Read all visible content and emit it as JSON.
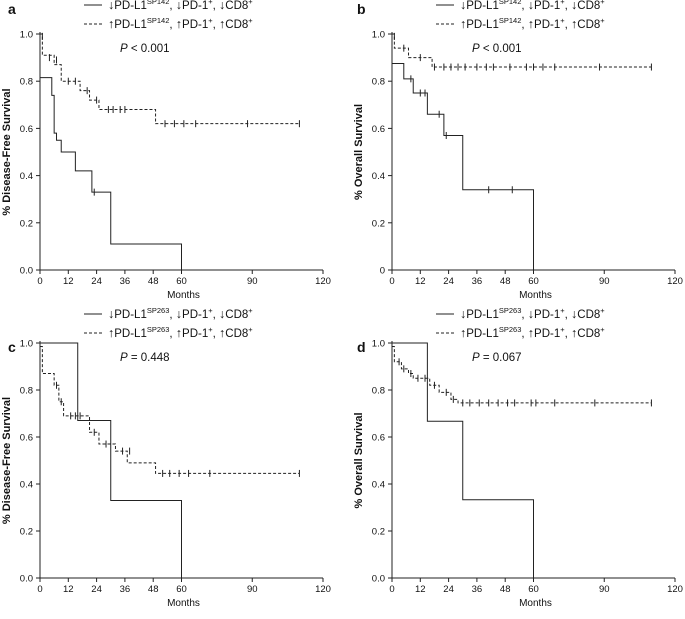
{
  "figure": {
    "arrows": {
      "down": "↓",
      "up": "↑"
    },
    "legend_parts": {
      "pdl1": "PD-L1",
      "pd1": "PD-1",
      "pd1_sup": "+",
      "cd8": "CD8",
      "cd8_sup": "+",
      "sep": ", "
    }
  },
  "chart_data": [
    {
      "panel": "a",
      "type": "line",
      "subtype": "kaplan-meier",
      "title": "",
      "xlabel": "Months",
      "ylabel": "% Disease-Free Survival",
      "xlim": [
        0,
        120
      ],
      "ylim": [
        0,
        1
      ],
      "xticks": [
        0,
        12,
        24,
        36,
        48,
        60,
        90,
        120
      ],
      "yticks": [
        0.0,
        0.2,
        0.4,
        0.6,
        0.8,
        1.0
      ],
      "ytick_labels": [
        "0.0",
        "0.2",
        "0.4",
        "0.6",
        "0.8",
        "1.0"
      ],
      "clone": "SP142",
      "p_label": "P",
      "p_text": " < 0.001",
      "series": [
        {
          "name": "↓PD-L1 SP142, ↓PD-1+, ↓CD8+",
          "style": "solid",
          "arrow": "down",
          "steps": [
            [
              0,
              0.815
            ],
            [
              5,
              0.74
            ],
            [
              6,
              0.58
            ],
            [
              7,
              0.55
            ],
            [
              9,
              0.5
            ],
            [
              15,
              0.42
            ],
            [
              22,
              0.33
            ],
            [
              30,
              0.11
            ],
            [
              60,
              0.0
            ]
          ],
          "censor": [
            [
              23,
              0.33
            ]
          ]
        },
        {
          "name": "↑PD-L1 SP142, ↑PD-1+, ↑CD8+",
          "style": "dashed",
          "arrow": "up",
          "steps": [
            [
              0,
              1.0
            ],
            [
              1,
              0.91
            ],
            [
              6,
              0.87
            ],
            [
              9,
              0.8
            ],
            [
              17,
              0.76
            ],
            [
              21,
              0.72
            ],
            [
              25,
              0.68
            ],
            [
              49,
              0.62
            ],
            [
              110,
              0.62
            ]
          ],
          "censor": [
            [
              1,
              0.99
            ],
            [
              4,
              0.9
            ],
            [
              7,
              0.89
            ],
            [
              12,
              0.8
            ],
            [
              15,
              0.8
            ],
            [
              20,
              0.76
            ],
            [
              24,
              0.72
            ],
            [
              29,
              0.68
            ],
            [
              31,
              0.68
            ],
            [
              34,
              0.68
            ],
            [
              36,
              0.68
            ],
            [
              53,
              0.62
            ],
            [
              57,
              0.62
            ],
            [
              61,
              0.62
            ],
            [
              66,
              0.62
            ],
            [
              88,
              0.62
            ],
            [
              110,
              0.62
            ]
          ]
        }
      ]
    },
    {
      "panel": "b",
      "type": "line",
      "subtype": "kaplan-meier",
      "title": "",
      "xlabel": "Months",
      "ylabel": "% Overall Survival",
      "xlim": [
        0,
        120
      ],
      "ylim": [
        0,
        1
      ],
      "xticks": [
        0,
        12,
        24,
        36,
        48,
        60,
        90,
        120
      ],
      "yticks": [
        0,
        0.2,
        0.4,
        0.6,
        0.8,
        1.0
      ],
      "ytick_labels": [
        "0",
        "0.2",
        "0.4",
        "0.6",
        "0.8",
        "1.0"
      ],
      "clone": "SP142",
      "p_label": "P",
      "p_text": " < 0.001",
      "series": [
        {
          "name": "↓PD-L1 SP142, ↓PD-1+, ↓CD8+",
          "style": "solid",
          "arrow": "down",
          "steps": [
            [
              0,
              0.875
            ],
            [
              5,
              0.81
            ],
            [
              9,
              0.75
            ],
            [
              15,
              0.66
            ],
            [
              22,
              0.57
            ],
            [
              30,
              0.34
            ],
            [
              60,
              0.0
            ]
          ],
          "censor": [
            [
              8,
              0.81
            ],
            [
              12,
              0.75
            ],
            [
              14,
              0.75
            ],
            [
              20,
              0.66
            ],
            [
              23,
              0.57
            ],
            [
              41,
              0.34
            ],
            [
              51,
              0.34
            ]
          ]
        },
        {
          "name": "↑PD-L1 SP142, ↑PD-1+, ↑CD8+",
          "style": "dashed",
          "arrow": "up",
          "steps": [
            [
              0,
              1.0
            ],
            [
              1,
              0.94
            ],
            [
              7,
              0.9
            ],
            [
              17,
              0.86
            ],
            [
              110,
              0.86
            ]
          ],
          "censor": [
            [
              1,
              0.99
            ],
            [
              5,
              0.94
            ],
            [
              12,
              0.9
            ],
            [
              18,
              0.86
            ],
            [
              22,
              0.86
            ],
            [
              25,
              0.86
            ],
            [
              28,
              0.86
            ],
            [
              31,
              0.86
            ],
            [
              36,
              0.86
            ],
            [
              40,
              0.86
            ],
            [
              43,
              0.86
            ],
            [
              50,
              0.86
            ],
            [
              57,
              0.86
            ],
            [
              60,
              0.86
            ],
            [
              64,
              0.86
            ],
            [
              69,
              0.86
            ],
            [
              88,
              0.86
            ],
            [
              110,
              0.86
            ]
          ]
        }
      ]
    },
    {
      "panel": "c",
      "type": "line",
      "subtype": "kaplan-meier",
      "title": "",
      "xlabel": "Months",
      "ylabel": "% Disease-Free Survival",
      "xlim": [
        0,
        120
      ],
      "ylim": [
        0,
        1
      ],
      "xticks": [
        0,
        12,
        24,
        36,
        48,
        60,
        90,
        120
      ],
      "yticks": [
        0.0,
        0.2,
        0.4,
        0.6,
        0.8,
        1.0
      ],
      "ytick_labels": [
        "0.0",
        "0.2",
        "0.4",
        "0.6",
        "0.8",
        "1.0"
      ],
      "clone": "SP263",
      "p_label": "P",
      "p_text": " = 0.448",
      "series": [
        {
          "name": "↓PD-L1 SP263, ↓PD-1+, ↓CD8+",
          "style": "solid",
          "arrow": "down",
          "steps": [
            [
              0,
              1.0
            ],
            [
              16,
              0.67
            ],
            [
              30,
              0.33
            ],
            [
              60,
              0.0
            ]
          ],
          "censor": []
        },
        {
          "name": "↑PD-L1 SP263, ↑PD-1+, ↑CD8+",
          "style": "dashed",
          "arrow": "up",
          "steps": [
            [
              0,
              0.985
            ],
            [
              1,
              0.87
            ],
            [
              6,
              0.82
            ],
            [
              8,
              0.75
            ],
            [
              10,
              0.69
            ],
            [
              21,
              0.62
            ],
            [
              25,
              0.57
            ],
            [
              32,
              0.54
            ],
            [
              37,
              0.49
            ],
            [
              49,
              0.445
            ],
            [
              110,
              0.445
            ]
          ],
          "censor": [
            [
              7,
              0.82
            ],
            [
              9,
              0.75
            ],
            [
              13,
              0.69
            ],
            [
              15,
              0.69
            ],
            [
              17,
              0.69
            ],
            [
              23,
              0.62
            ],
            [
              28,
              0.57
            ],
            [
              35,
              0.54
            ],
            [
              38,
              0.54
            ],
            [
              52,
              0.445
            ],
            [
              55,
              0.445
            ],
            [
              59,
              0.445
            ],
            [
              63,
              0.445
            ],
            [
              72,
              0.445
            ],
            [
              110,
              0.445
            ]
          ]
        }
      ]
    },
    {
      "panel": "d",
      "type": "line",
      "subtype": "kaplan-meier",
      "title": "",
      "xlabel": "Months",
      "ylabel": "% Overall Survival",
      "xlim": [
        0,
        120
      ],
      "ylim": [
        0,
        1
      ],
      "xticks": [
        0,
        12,
        24,
        36,
        48,
        60,
        90,
        120
      ],
      "yticks": [
        0.0,
        0.2,
        0.4,
        0.6,
        0.8,
        1.0
      ],
      "ytick_labels": [
        "0.0",
        "0.2",
        "0.4",
        "0.6",
        "0.8",
        "1.0"
      ],
      "clone": "SP263",
      "p_label": "P",
      "p_text": " = 0.067",
      "series": [
        {
          "name": "↓PD-L1 SP263, ↓PD-1+, ↓CD8+",
          "style": "solid",
          "arrow": "down",
          "steps": [
            [
              0,
              1.0
            ],
            [
              15,
              0.667
            ],
            [
              30,
              0.333
            ],
            [
              60,
              0.0
            ]
          ],
          "censor": []
        },
        {
          "name": "↑PD-L1 SP263, ↑PD-1+, ↑CD8+",
          "style": "dashed",
          "arrow": "up",
          "steps": [
            [
              0,
              0.985
            ],
            [
              1,
              0.92
            ],
            [
              4,
              0.89
            ],
            [
              7,
              0.87
            ],
            [
              9,
              0.85
            ],
            [
              16,
              0.82
            ],
            [
              20,
              0.79
            ],
            [
              25,
              0.76
            ],
            [
              28,
              0.745
            ],
            [
              110,
              0.745
            ]
          ],
          "censor": [
            [
              3,
              0.92
            ],
            [
              5,
              0.89
            ],
            [
              8,
              0.87
            ],
            [
              11,
              0.85
            ],
            [
              14,
              0.85
            ],
            [
              18,
              0.82
            ],
            [
              23,
              0.79
            ],
            [
              26,
              0.76
            ],
            [
              30,
              0.745
            ],
            [
              33,
              0.745
            ],
            [
              37,
              0.745
            ],
            [
              41,
              0.745
            ],
            [
              45,
              0.745
            ],
            [
              49,
              0.745
            ],
            [
              52,
              0.745
            ],
            [
              59,
              0.745
            ],
            [
              61,
              0.745
            ],
            [
              69,
              0.745
            ],
            [
              86,
              0.745
            ],
            [
              110,
              0.745
            ]
          ]
        }
      ]
    }
  ]
}
